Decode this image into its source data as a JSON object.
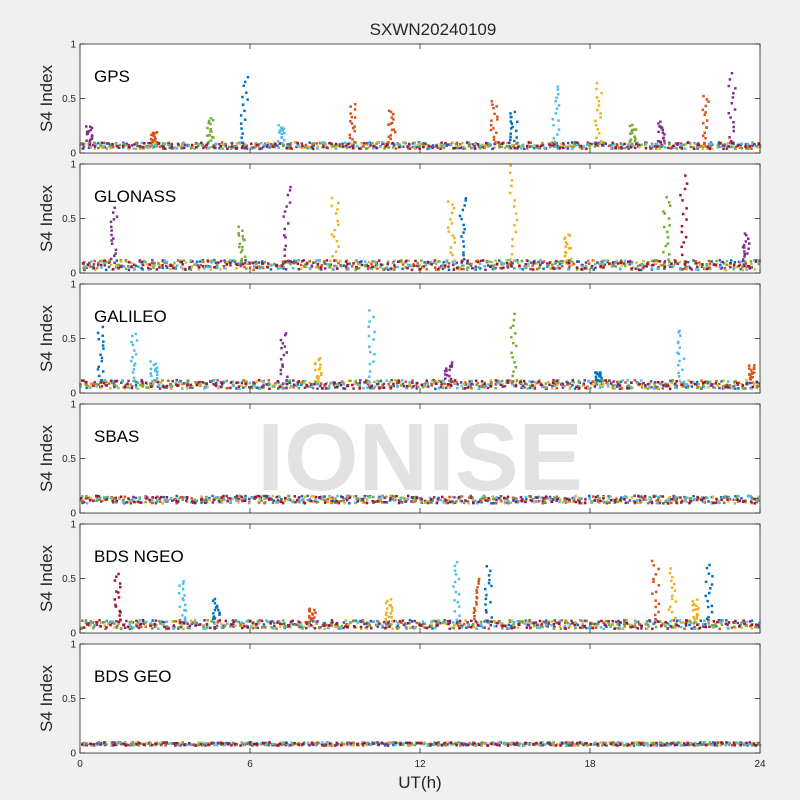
{
  "title": "SXWN20240109",
  "watermark": "IONISE",
  "colors": {
    "background": "#f0f0f0",
    "axes_bg": "#ffffff",
    "axis": "#262626",
    "series": [
      "#0072BD",
      "#D95319",
      "#EDB120",
      "#7E2F8E",
      "#77AC30",
      "#4DBEEE",
      "#A2142F"
    ]
  },
  "chart_data": {
    "type": "scatter",
    "xlabel": "UT(h)",
    "xlim": [
      0,
      24
    ],
    "xticks": [
      0,
      6,
      12,
      18,
      24
    ],
    "ylabel": "S4 Index",
    "ylim": [
      0,
      1
    ],
    "yticks": [
      0,
      0.5,
      1
    ],
    "panels": [
      {
        "label": "GPS",
        "baseline": [
          0.04,
          0.1
        ],
        "spikes": [
          {
            "x": 0.3,
            "y": 0.25,
            "c": 3
          },
          {
            "x": 2.6,
            "y": 0.2,
            "c": 1
          },
          {
            "x": 4.6,
            "y": 0.32,
            "c": 4
          },
          {
            "x": 5.8,
            "y": 0.69,
            "c": 0
          },
          {
            "x": 7.1,
            "y": 0.25,
            "c": 5
          },
          {
            "x": 9.6,
            "y": 0.44,
            "c": 1
          },
          {
            "x": 11.0,
            "y": 0.4,
            "c": 1
          },
          {
            "x": 14.6,
            "y": 0.48,
            "c": 1
          },
          {
            "x": 15.3,
            "y": 0.38,
            "c": 0
          },
          {
            "x": 16.8,
            "y": 0.62,
            "c": 5
          },
          {
            "x": 18.3,
            "y": 0.64,
            "c": 2
          },
          {
            "x": 19.5,
            "y": 0.25,
            "c": 4
          },
          {
            "x": 20.5,
            "y": 0.28,
            "c": 3
          },
          {
            "x": 22.1,
            "y": 0.52,
            "c": 1
          },
          {
            "x": 23.0,
            "y": 0.72,
            "c": 3
          }
        ]
      },
      {
        "label": "GLONASS",
        "baseline": [
          0.03,
          0.12
        ],
        "spikes": [
          {
            "x": 1.2,
            "y": 0.6,
            "c": 3
          },
          {
            "x": 5.7,
            "y": 0.42,
            "c": 4
          },
          {
            "x": 7.3,
            "y": 0.8,
            "c": 3
          },
          {
            "x": 9.0,
            "y": 0.7,
            "c": 2
          },
          {
            "x": 13.1,
            "y": 0.66,
            "c": 2
          },
          {
            "x": 13.5,
            "y": 0.7,
            "c": 0
          },
          {
            "x": 15.3,
            "y": 0.98,
            "c": 2
          },
          {
            "x": 17.2,
            "y": 0.35,
            "c": 2
          },
          {
            "x": 20.7,
            "y": 0.7,
            "c": 4
          },
          {
            "x": 21.3,
            "y": 0.88,
            "c": 6
          },
          {
            "x": 23.5,
            "y": 0.35,
            "c": 3
          }
        ]
      },
      {
        "label": "GALILEO",
        "baseline": [
          0.04,
          0.12
        ],
        "spikes": [
          {
            "x": 0.7,
            "y": 0.6,
            "c": 0
          },
          {
            "x": 1.9,
            "y": 0.55,
            "c": 5
          },
          {
            "x": 2.6,
            "y": 0.28,
            "c": 5
          },
          {
            "x": 7.2,
            "y": 0.56,
            "c": 3
          },
          {
            "x": 8.4,
            "y": 0.32,
            "c": 2
          },
          {
            "x": 10.3,
            "y": 0.75,
            "c": 5
          },
          {
            "x": 13.0,
            "y": 0.28,
            "c": 3
          },
          {
            "x": 15.3,
            "y": 0.72,
            "c": 4
          },
          {
            "x": 18.3,
            "y": 0.2,
            "c": 0
          },
          {
            "x": 21.2,
            "y": 0.58,
            "c": 5
          },
          {
            "x": 23.7,
            "y": 0.25,
            "c": 1
          }
        ]
      },
      {
        "label": "SBAS",
        "baseline": [
          0.09,
          0.16
        ],
        "spikes": []
      },
      {
        "label": "BDS NGEO",
        "baseline": [
          0.04,
          0.12
        ],
        "spikes": [
          {
            "x": 1.3,
            "y": 0.55,
            "c": 6
          },
          {
            "x": 3.6,
            "y": 0.48,
            "c": 5
          },
          {
            "x": 4.8,
            "y": 0.3,
            "c": 0
          },
          {
            "x": 8.2,
            "y": 0.22,
            "c": 1
          },
          {
            "x": 10.9,
            "y": 0.3,
            "c": 2
          },
          {
            "x": 13.3,
            "y": 0.65,
            "c": 5
          },
          {
            "x": 14.0,
            "y": 0.5,
            "c": 1
          },
          {
            "x": 14.4,
            "y": 0.6,
            "c": 0
          },
          {
            "x": 20.3,
            "y": 0.66,
            "c": 1
          },
          {
            "x": 20.9,
            "y": 0.58,
            "c": 2
          },
          {
            "x": 21.7,
            "y": 0.3,
            "c": 2
          },
          {
            "x": 22.2,
            "y": 0.62,
            "c": 0
          }
        ]
      },
      {
        "label": "BDS GEO",
        "baseline": [
          0.07,
          0.1
        ],
        "spikes": []
      }
    ]
  }
}
